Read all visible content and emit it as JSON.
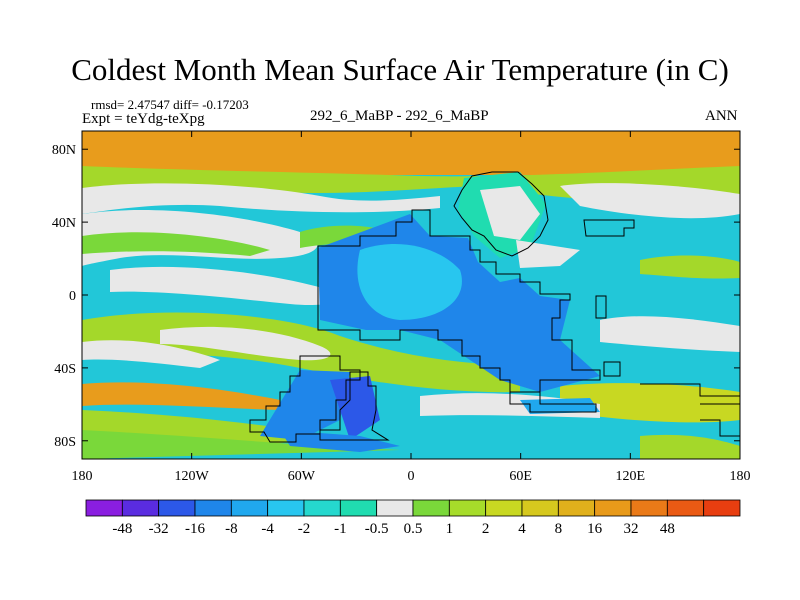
{
  "title": "Coldest Month Mean Surface Air Temperature (in C)",
  "stats": "rmsd= 2.47547 diff= -0.17203",
  "experiment": "Expt = teYdg-teXpg",
  "subtitle_center": "292_6_MaBP - 292_6_MaBP",
  "subtitle_right": "ANN",
  "map": {
    "lon_range": [
      -180,
      180
    ],
    "lat_range": [
      -90,
      90
    ],
    "x_ticks": [
      {
        "lon": -180,
        "label": "180"
      },
      {
        "lon": -120,
        "label": "120W"
      },
      {
        "lon": -60,
        "label": "60W"
      },
      {
        "lon": 0,
        "label": "0"
      },
      {
        "lon": 60,
        "label": "60E"
      },
      {
        "lon": 120,
        "label": "120E"
      },
      {
        "lon": 180,
        "label": "180"
      }
    ],
    "y_ticks": [
      {
        "lat": 80,
        "label": "80N"
      },
      {
        "lat": 40,
        "label": "40N"
      },
      {
        "lat": 0,
        "label": "0"
      },
      {
        "lat": -40,
        "label": "40S"
      },
      {
        "lat": -80,
        "label": "80S"
      }
    ]
  },
  "colorbar": {
    "colors": [
      "#8a1ee0",
      "#5a2ce0",
      "#2c58e8",
      "#1f86ea",
      "#20a8ee",
      "#28c6ef",
      "#25d8ce",
      "#20dcb0",
      "#e8e8e8",
      "#7ad83a",
      "#a6dc2a",
      "#c8d822",
      "#d6c81e",
      "#e0b01c",
      "#e89a1a",
      "#ea7a18",
      "#ea5a14",
      "#e83e10"
    ],
    "labels": [
      "-48",
      "-32",
      "-16",
      "-8",
      "-4",
      "-2",
      "-1",
      "-0.5",
      "0.5",
      "1",
      "2",
      "4",
      "8",
      "16",
      "32",
      "48"
    ]
  }
}
